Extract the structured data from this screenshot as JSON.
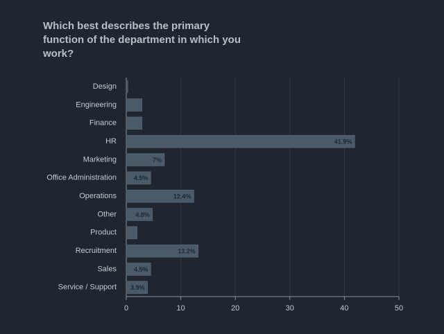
{
  "chart_data": {
    "type": "bar",
    "orientation": "horizontal",
    "title": "Which best describes the primary function of the department in which you work?",
    "categories": [
      "Design",
      "Engineering",
      "Finance",
      "HR",
      "Marketing",
      "Office Administration",
      "Operations",
      "Other",
      "Product",
      "Recruitment",
      "Sales",
      "Service / Support"
    ],
    "values": [
      0.3,
      2.9,
      2.9,
      41.9,
      7,
      4.5,
      12.4,
      4.8,
      2,
      13.2,
      4.5,
      3.9
    ],
    "value_labels": [
      null,
      null,
      null,
      "41.9%",
      "7%",
      "4.5%",
      "12.4%",
      "4.8%",
      null,
      "13.2%",
      "4.5%",
      "3.9%"
    ],
    "color": "#4b5a69",
    "xlim": [
      0,
      50
    ],
    "xticks": [
      0,
      10,
      20,
      30,
      40,
      50
    ],
    "grid": true
  }
}
